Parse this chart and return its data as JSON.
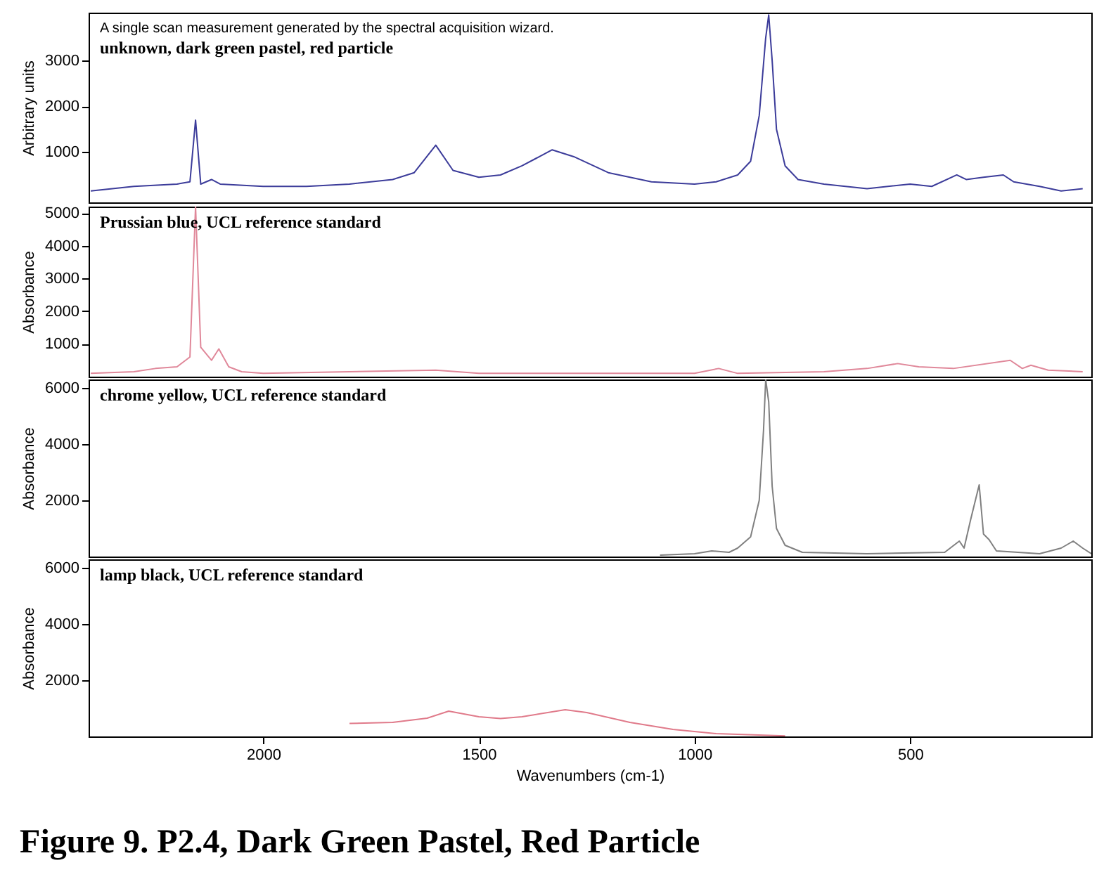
{
  "chart_data": [
    {
      "type": "line",
      "title": "unknown, dark green pastel, red particle",
      "ylabel": "Arbitrary units",
      "annotations": [
        "A single scan measurement generated by the spectral acquisition wizard."
      ],
      "xlim": [
        2405,
        80
      ],
      "xticks": [
        2000,
        1500,
        1000,
        500
      ],
      "ylim": [
        -100,
        4050
      ],
      "yticks": [
        1000,
        2000,
        3000
      ],
      "tick_labels": "y",
      "grid": false,
      "series": [
        {
          "color": "#3c3c9a",
          "x": [
            2400,
            2300,
            2200,
            2170,
            2157,
            2145,
            2120,
            2100,
            2000,
            1900,
            1800,
            1700,
            1650,
            1600,
            1560,
            1500,
            1450,
            1400,
            1330,
            1280,
            1200,
            1100,
            1000,
            950,
            900,
            870,
            850,
            835,
            828,
            820,
            810,
            790,
            760,
            700,
            600,
            500,
            450,
            392,
            370,
            330,
            284,
            260,
            230,
            200,
            150,
            100
          ],
          "values": [
            150,
            250,
            300,
            350,
            1700,
            300,
            400,
            300,
            250,
            250,
            300,
            400,
            550,
            1150,
            600,
            450,
            500,
            700,
            1050,
            900,
            550,
            350,
            300,
            350,
            500,
            800,
            1800,
            3500,
            4000,
            3000,
            1500,
            700,
            400,
            300,
            200,
            300,
            250,
            500,
            400,
            450,
            500,
            350,
            300,
            250,
            150,
            200
          ]
        }
      ]
    },
    {
      "type": "line",
      "title": "Prussian blue, UCL reference standard",
      "ylabel": "Absorbance",
      "xlim": [
        2405,
        80
      ],
      "xticks": [
        2000,
        1500,
        1000,
        500
      ],
      "ylim": [
        0,
        5200
      ],
      "yticks": [
        1000,
        2000,
        3000,
        4000,
        5000
      ],
      "tick_labels": "y",
      "grid": false,
      "series": [
        {
          "color": "#e0889a",
          "x": [
            2400,
            2300,
            2250,
            2200,
            2170,
            2157,
            2145,
            2120,
            2103,
            2080,
            2050,
            2000,
            1800,
            1600,
            1500,
            1000,
            944,
            900,
            700,
            600,
            529,
            480,
            400,
            268,
            240,
            220,
            180,
            100
          ],
          "values": [
            100,
            150,
            250,
            300,
            600,
            5200,
            900,
            500,
            850,
            300,
            150,
            100,
            150,
            200,
            100,
            100,
            250,
            100,
            150,
            250,
            400,
            300,
            250,
            500,
            250,
            350,
            200,
            150
          ]
        }
      ]
    },
    {
      "type": "line",
      "title": "chrome yellow, UCL reference standard",
      "ylabel": "Absorbance",
      "xlim": [
        2405,
        80
      ],
      "xticks": [
        2000,
        1500,
        1000,
        500
      ],
      "ylim": [
        0,
        6300
      ],
      "yticks": [
        2000,
        4000,
        6000
      ],
      "tick_labels": "y",
      "grid": false,
      "series": [
        {
          "color": "#808080",
          "x": [
            1080,
            1000,
            960,
            920,
            900,
            870,
            850,
            840,
            835,
            828,
            820,
            810,
            790,
            750,
            600,
            420,
            386,
            375,
            360,
            340,
            330,
            317,
            300,
            200,
            150,
            122,
            100,
            80
          ],
          "values": [
            50,
            100,
            200,
            150,
            300,
            700,
            2000,
            4500,
            6300,
            5500,
            2500,
            1000,
            400,
            150,
            100,
            150,
            550,
            300,
            1300,
            2550,
            800,
            600,
            200,
            100,
            300,
            550,
            300,
            100
          ]
        }
      ]
    },
    {
      "type": "line",
      "title": "lamp black, UCL reference standard",
      "ylabel": "Absorbance",
      "xlabel": "Wavenumbers (cm-1)",
      "annotations": [
        "Figure 9. P2.4, Dark Green Pastel, Red Particle"
      ],
      "xlim": [
        2405,
        80
      ],
      "xticks": [
        2000,
        1500,
        1000,
        500
      ],
      "ylim": [
        0,
        6300
      ],
      "yticks": [
        2000,
        4000,
        6000
      ],
      "grid": false,
      "series": [
        {
          "color": "#e07a8a",
          "x": [
            1800,
            1700,
            1620,
            1570,
            1500,
            1450,
            1400,
            1300,
            1250,
            1150,
            1050,
            950,
            790
          ],
          "values": [
            460,
            500,
            650,
            900,
            700,
            640,
            700,
            950,
            850,
            500,
            250,
            100,
            20
          ]
        }
      ]
    }
  ]
}
